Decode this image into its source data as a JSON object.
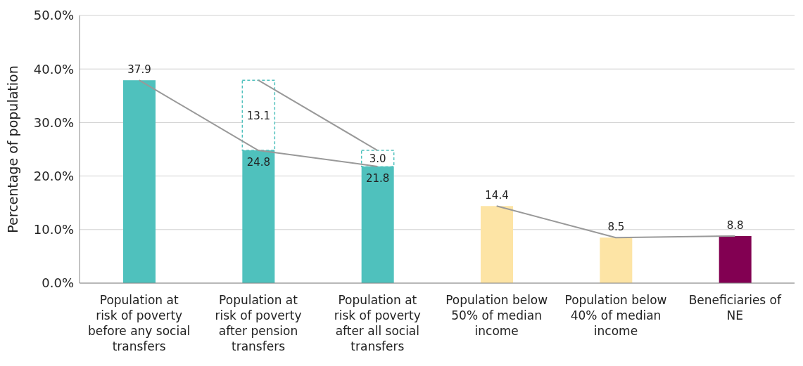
{
  "chart_data": {
    "type": "bar",
    "ylabel": "Percentage of population",
    "categories": [
      "Population at risk of poverty before any social transfers",
      "Population at risk of poverty after pension transfers",
      "Population at risk of poverty after all social transfers",
      "Population below 50% of median income",
      "Population below 40% of median income",
      "Beneficiaries of NE"
    ],
    "stacked": true,
    "series": [
      {
        "colors": [
          "#4fc1bd",
          "#4fc1bd",
          "#4fc1bd",
          "#fde4a5",
          "#fde4a5",
          "#820052"
        ],
        "values": [
          37.9,
          24.8,
          21.8,
          14.4,
          8.5,
          8.8
        ],
        "value_labels": [
          "37.9",
          "24.8",
          "21.8",
          "14.4",
          "8.5",
          "8.8"
        ]
      },
      {
        "color": "#4fc1bd",
        "line_style": "dashed",
        "values": [
          null,
          13.1,
          3.0,
          null,
          null,
          null
        ],
        "value_labels": [
          null,
          "13.1",
          "3.0",
          null,
          null,
          null
        ]
      },
      {
        "type": "line",
        "color": "#999999",
        "values": [
          37.9,
          24.8,
          21.8,
          null,
          null,
          null
        ]
      },
      {
        "type": "line",
        "color": "#999999",
        "values": [
          null,
          37.9,
          24.8,
          null,
          null,
          null
        ]
      },
      {
        "type": "line",
        "color": "#999999",
        "values": [
          null,
          null,
          null,
          14.4,
          8.5,
          8.8
        ]
      }
    ],
    "ylim": [
      0,
      50
    ],
    "yticks": [
      {
        "value": 0,
        "label": "0.0%"
      },
      {
        "value": 10,
        "label": "10.0%"
      },
      {
        "value": 20,
        "label": "20.0%"
      },
      {
        "value": 30,
        "label": "30.0%"
      },
      {
        "value": 40,
        "label": "40.0%"
      },
      {
        "value": 50,
        "label": "50.0%"
      }
    ],
    "grid": "y"
  }
}
